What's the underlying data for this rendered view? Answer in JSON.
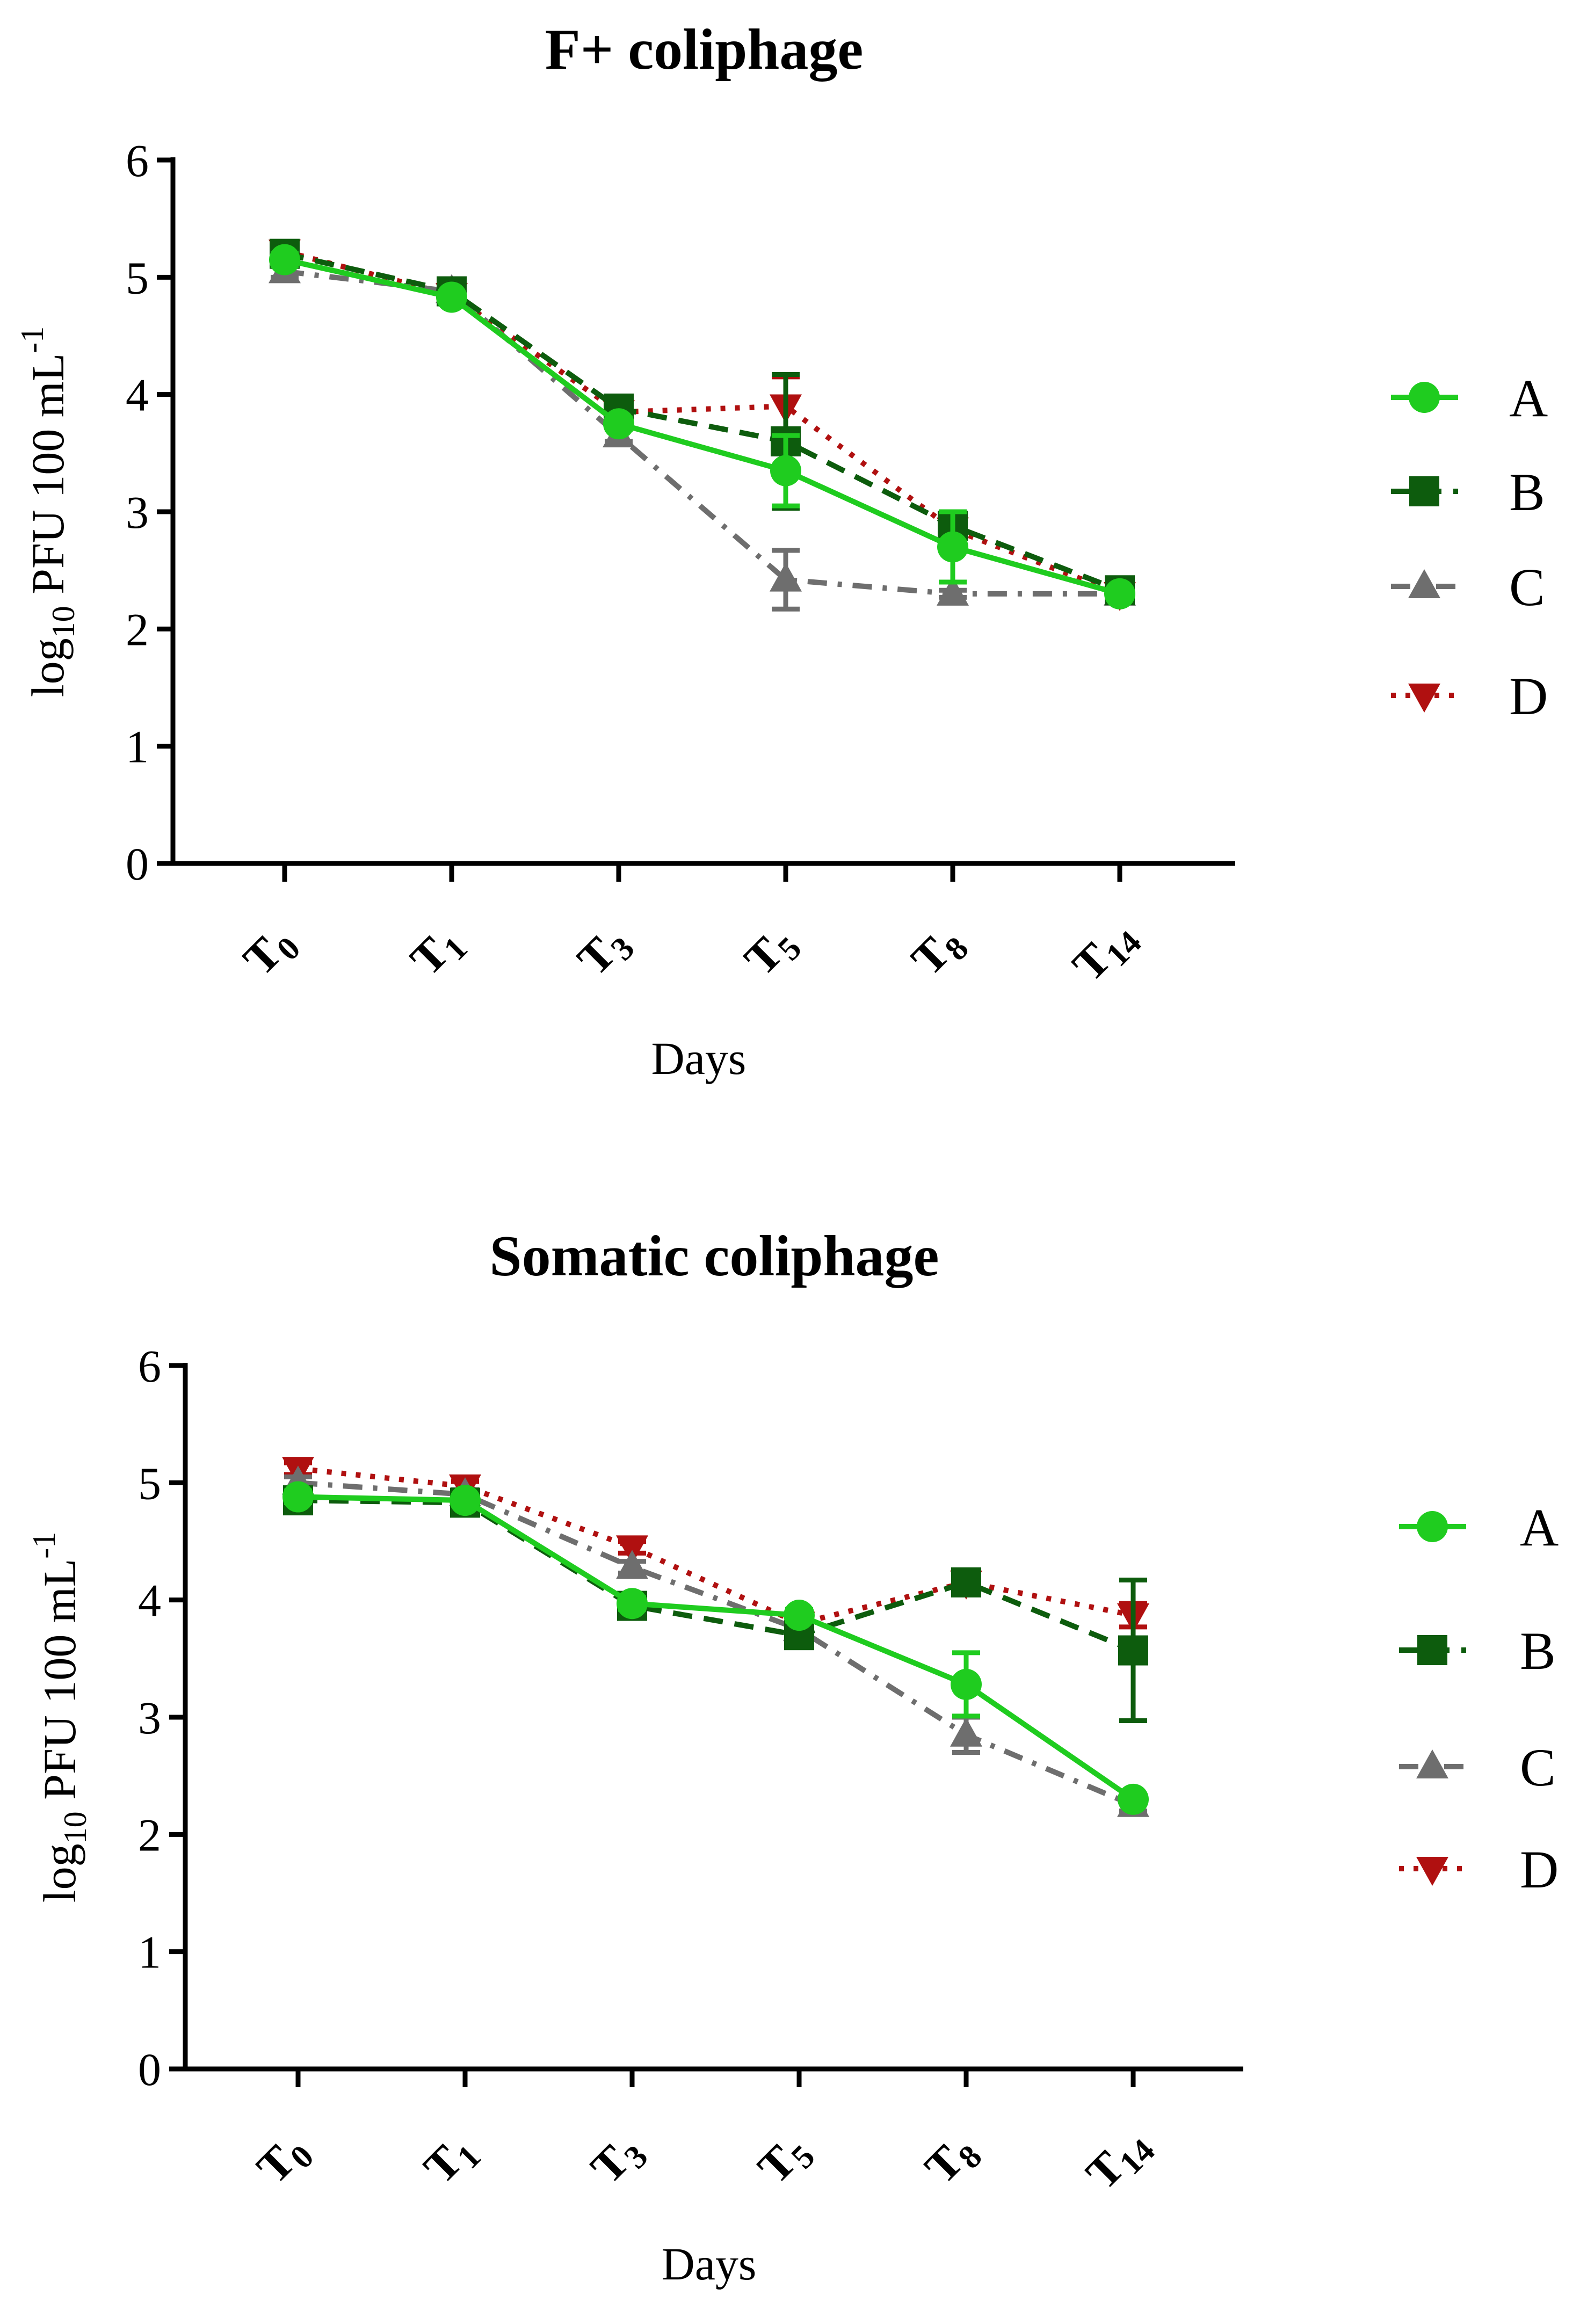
{
  "chart_data": [
    {
      "type": "line",
      "title": "F+ coliphage",
      "xlabel": "Days",
      "ylabel": {
        "prefix": "log",
        "sub": "10",
        "middle": " PFU 100 mL",
        "sup": "-1"
      },
      "ylim": [
        0,
        6
      ],
      "yticks": [
        0,
        1,
        2,
        3,
        4,
        5,
        6
      ],
      "categories": [
        {
          "base": "T",
          "sub": "0"
        },
        {
          "base": "T",
          "sub": "1"
        },
        {
          "base": "T",
          "sub": "3"
        },
        {
          "base": "T",
          "sub": "5"
        },
        {
          "base": "T",
          "sub": "8"
        },
        {
          "base": "T",
          "sub": "14"
        }
      ],
      "series": [
        {
          "name": "A",
          "values": [
            5.15,
            4.83,
            3.75,
            3.35,
            2.7,
            2.3
          ],
          "errors": [
            0.05,
            0.03,
            0.05,
            0.3,
            0.3,
            0.03
          ]
        },
        {
          "name": "B",
          "values": [
            5.2,
            4.88,
            3.88,
            3.6,
            2.88,
            2.33
          ],
          "errors": [
            0.05,
            0.05,
            0.05,
            0.57,
            0.1,
            0.05
          ]
        },
        {
          "name": "C",
          "values": [
            5.05,
            4.88,
            3.65,
            2.42,
            2.3,
            2.3
          ],
          "errors": [
            0.05,
            0.04,
            0.05,
            0.25,
            0.03,
            0.03
          ]
        },
        {
          "name": "D",
          "values": [
            5.22,
            4.85,
            3.85,
            3.9,
            2.85,
            2.3
          ],
          "errors": [
            0.05,
            0.03,
            0.05,
            0.25,
            0.1,
            0.03
          ]
        }
      ]
    },
    {
      "type": "line",
      "title": "Somatic coliphage",
      "xlabel": "Days",
      "ylabel": {
        "prefix": "log",
        "sub": "10",
        "middle": " PFU 100 mL",
        "sup": "-1"
      },
      "ylim": [
        0,
        6
      ],
      "yticks": [
        0,
        1,
        2,
        3,
        4,
        5,
        6
      ],
      "categories": [
        {
          "base": "T",
          "sub": "0"
        },
        {
          "base": "T",
          "sub": "1"
        },
        {
          "base": "T",
          "sub": "3"
        },
        {
          "base": "T",
          "sub": "5"
        },
        {
          "base": "T",
          "sub": "8"
        },
        {
          "base": "T",
          "sub": "14"
        }
      ],
      "series": [
        {
          "name": "A",
          "values": [
            4.88,
            4.85,
            3.97,
            3.87,
            3.28,
            2.3
          ],
          "errors": [
            0.05,
            0.04,
            0.05,
            0.05,
            0.27,
            0.03
          ]
        },
        {
          "name": "B",
          "values": [
            4.85,
            4.83,
            3.95,
            3.7,
            4.15,
            3.57
          ],
          "errors": [
            0.05,
            0.04,
            0.05,
            0.05,
            0.1,
            0.6
          ]
        },
        {
          "name": "C",
          "values": [
            5.0,
            4.9,
            4.28,
            3.75,
            2.85,
            2.25
          ],
          "errors": [
            0.05,
            0.04,
            0.05,
            0.05,
            0.15,
            0.05
          ]
        },
        {
          "name": "D",
          "values": [
            5.12,
            4.97,
            4.45,
            3.8,
            4.15,
            3.87
          ],
          "errors": [
            0.05,
            0.04,
            0.05,
            0.05,
            0.1,
            0.1
          ]
        }
      ]
    }
  ],
  "series_styles": {
    "A": {
      "color": "#1fcc1f",
      "marker": "circle",
      "dash": "none"
    },
    "B": {
      "color": "#0d5c0d",
      "marker": "square",
      "dash": "dash"
    },
    "C": {
      "color": "#6e6e6e",
      "marker": "triangle-up",
      "dash": "dashdot"
    },
    "D": {
      "color": "#b01010",
      "marker": "triangle-down",
      "dash": "dot"
    }
  }
}
